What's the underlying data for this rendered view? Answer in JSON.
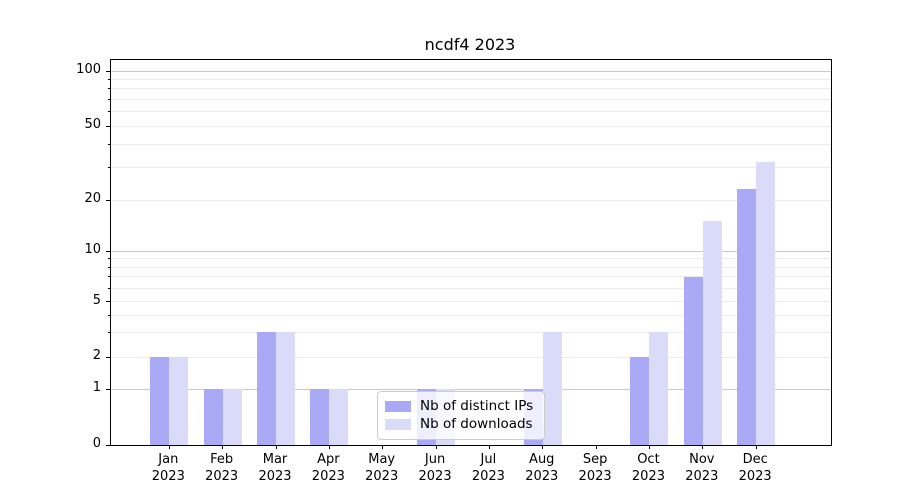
{
  "chart_data": {
    "type": "bar",
    "title": "ncdf4 2023",
    "x_month_labels": [
      "Jan",
      "Feb",
      "Mar",
      "Apr",
      "May",
      "Jun",
      "Jul",
      "Aug",
      "Sep",
      "Oct",
      "Nov",
      "Dec"
    ],
    "x_year_label": "2023",
    "series": [
      {
        "name": "Nb of distinct IPs",
        "color": "#a9a9f5",
        "values": [
          2,
          1,
          3,
          1,
          0,
          1,
          0,
          1,
          0,
          2,
          7,
          23
        ]
      },
      {
        "name": "Nb of downloads",
        "color": "#dadaf9",
        "values": [
          2,
          1,
          3,
          1,
          0,
          1,
          0,
          3,
          0,
          3,
          15,
          32
        ]
      }
    ],
    "ylabel": "",
    "xlabel": "",
    "yscale": "symlog",
    "yticks": [
      0,
      1,
      2,
      5,
      10,
      20,
      50,
      100
    ],
    "major_decade_ticks": [
      1,
      10,
      100
    ],
    "minor_gridline_values": [
      3,
      4,
      6,
      7,
      8,
      9,
      30,
      40,
      60,
      70,
      80,
      90
    ],
    "ylim": [
      0,
      115
    ],
    "grid": true,
    "legend_position": "lower-center-left",
    "colors": {
      "major_grid": "#c9c9c9",
      "minor_grid": "#ececec",
      "axis": "#000000",
      "background": "#ffffff"
    }
  }
}
